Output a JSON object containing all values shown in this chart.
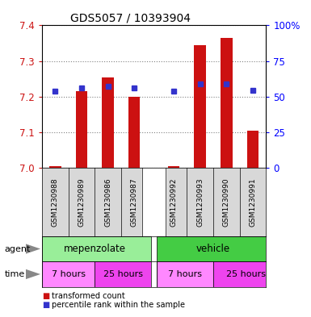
{
  "title": "GDS5057 / 10393904",
  "samples": [
    "GSM1230988",
    "GSM1230989",
    "GSM1230986",
    "GSM1230987",
    "GSM1230992",
    "GSM1230993",
    "GSM1230990",
    "GSM1230991"
  ],
  "bar_values": [
    7.005,
    7.215,
    7.255,
    7.2,
    7.005,
    7.345,
    7.365,
    7.105
  ],
  "bar_base": 7.0,
  "percentile_values": [
    7.215,
    7.225,
    7.228,
    7.224,
    7.215,
    7.237,
    7.237,
    7.218
  ],
  "ylim": [
    7.0,
    7.4
  ],
  "yticks_left": [
    7.0,
    7.1,
    7.2,
    7.3,
    7.4
  ],
  "yticks_right_vals": [
    7.0,
    7.1,
    7.2,
    7.3,
    7.4
  ],
  "yticks_right_labels": [
    "0",
    "25",
    "50",
    "75",
    "100%"
  ],
  "bar_color": "#cc1111",
  "percentile_color": "#3333cc",
  "bar_width": 0.45,
  "agent_color_mep": "#99ee99",
  "agent_color_veh": "#44cc44",
  "time_color_7": "#ff88ff",
  "time_color_25": "#ee44ee",
  "bg_gray": "#d8d8d8",
  "legend_red": "transformed count",
  "legend_blue": "percentile rank within the sample"
}
